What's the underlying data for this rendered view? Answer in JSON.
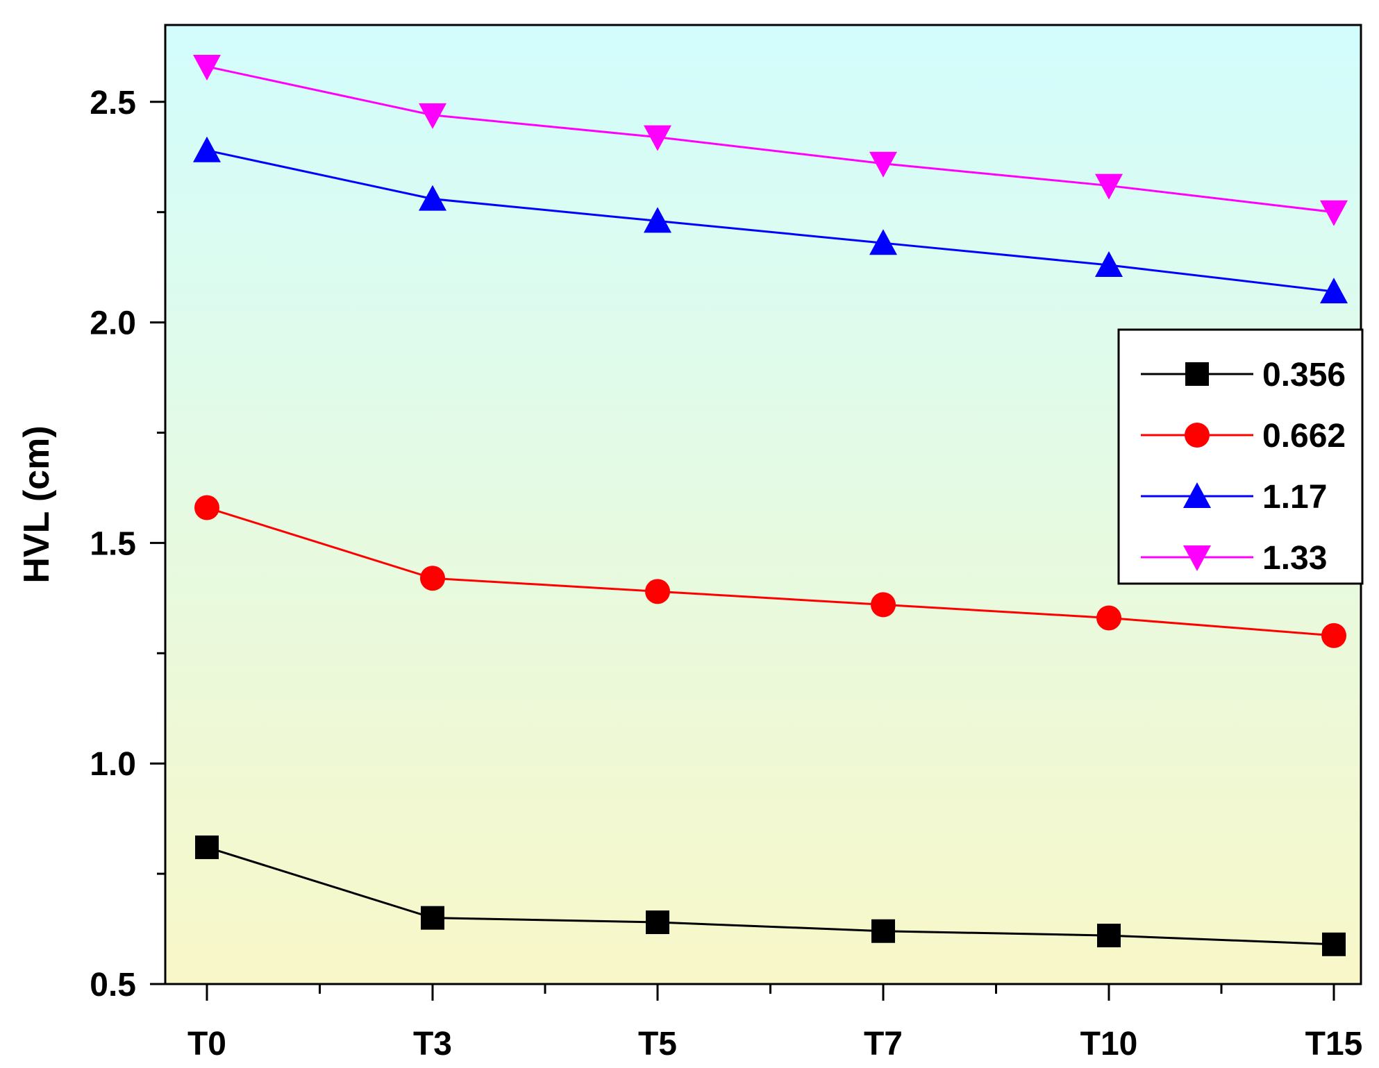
{
  "chart_data": {
    "type": "line",
    "title": "",
    "xlabel": "",
    "ylabel": "HVL (cm)",
    "categories": [
      "T0",
      "T3",
      "T5",
      "T7",
      "T10",
      "T15"
    ],
    "y_ticks": [
      "0.5",
      "1.0",
      "1.5",
      "2.0",
      "2.5"
    ],
    "ylim": [
      0.5,
      2.7
    ],
    "grid": false,
    "legend_position": "right",
    "background_gradient": {
      "top": "#d2fdfd",
      "bottom": "#f8f7c8"
    },
    "series": [
      {
        "name": "0.356",
        "color": "#000000",
        "marker": "square",
        "values": [
          0.81,
          0.65,
          0.64,
          0.62,
          0.61,
          0.59
        ]
      },
      {
        "name": "0.662",
        "color": "#ff0000",
        "marker": "circle",
        "values": [
          1.58,
          1.42,
          1.39,
          1.36,
          1.33,
          1.29
        ]
      },
      {
        "name": "1.17",
        "color": "#0000ff",
        "marker": "triangle-up",
        "values": [
          2.39,
          2.28,
          2.23,
          2.18,
          2.13,
          2.07
        ]
      },
      {
        "name": "1.33",
        "color": "#ff00ff",
        "marker": "triangle-down",
        "values": [
          2.58,
          2.47,
          2.42,
          2.36,
          2.31,
          2.25
        ]
      }
    ]
  }
}
